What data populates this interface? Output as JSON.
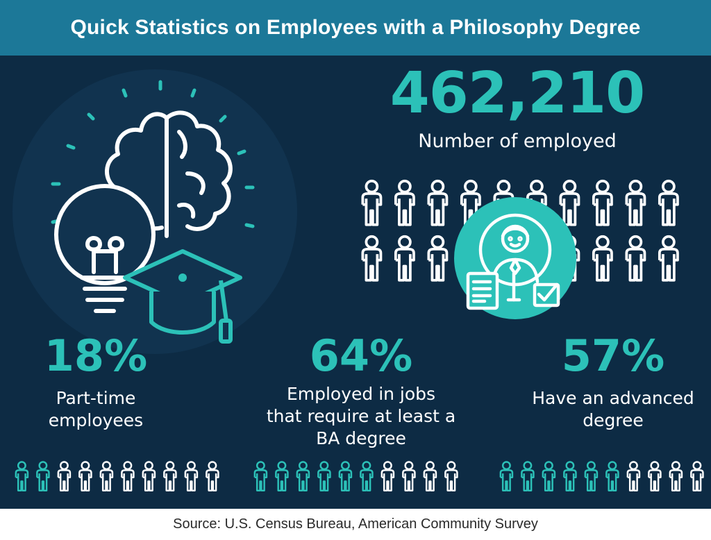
{
  "header": {
    "title": "Quick Statistics on Employees with a Philosophy Degree"
  },
  "headline": {
    "value": "462,210",
    "label": "Number of employed"
  },
  "stats": [
    {
      "value": "18%",
      "label_lines": [
        "Part-time",
        "employees"
      ],
      "highlighted": 2,
      "of": 10
    },
    {
      "value": "64%",
      "label_lines": [
        "Employed in jobs",
        "that require at least a",
        "BA degree"
      ],
      "highlighted": 6,
      "of": 10
    },
    {
      "value": "57%",
      "label_lines": [
        "Have an advanced",
        "degree"
      ],
      "highlighted": 6,
      "of": 10
    }
  ],
  "footer": {
    "source": "Source: U.S. Census Bureau, American Community Survey"
  },
  "icons": {
    "hero": "lightbulb-brain-graduation-cap-icon",
    "badge": "employee-resume-badge-icon",
    "person": "person-outline-icon"
  },
  "colors": {
    "header": "#1c7898",
    "panel": "#0d2b44",
    "accent": "#2cc1b8",
    "text": "#ffffff"
  }
}
